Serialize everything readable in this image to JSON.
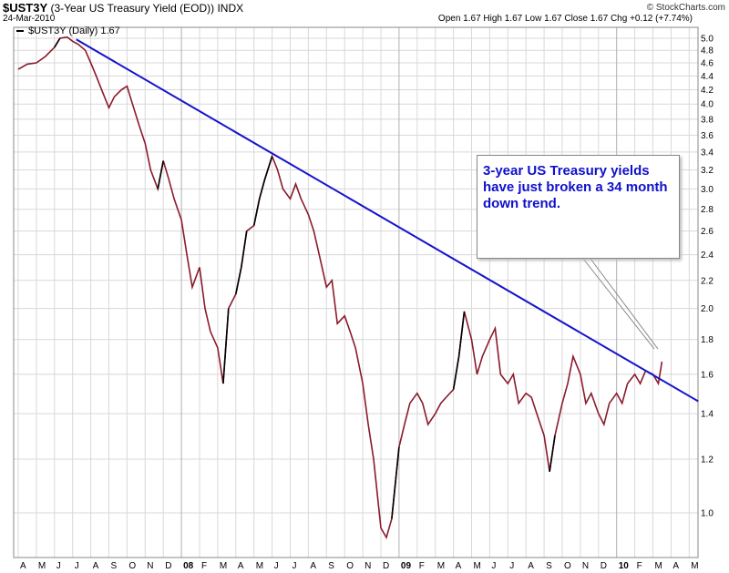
{
  "header": {
    "symbol": "$UST3Y",
    "description": "(3-Year US Treasury Yield (EOD))",
    "exchange": "INDX",
    "date": "24-Mar-2010",
    "ohlc": "Open 1.67   High 1.67   Low 1.67   Close 1.67   Chg +0.12 (+7.74%)",
    "watermark": "© StockCharts.com"
  },
  "legend": {
    "label": "$UST3Y (Daily) 1.67"
  },
  "annotation": {
    "lines": [
      "3-year US Treasury yields",
      "have just  broken a 34 month",
      "down trend."
    ]
  },
  "colors": {
    "price": "#8b1a2b",
    "price_up": "#000000",
    "trendline": "#1414cc",
    "grid": "#d8d8d8",
    "callout_text": "#1010cc"
  },
  "chart_data": {
    "type": "line",
    "title": "$UST3Y (3-Year US Treasury Yield (EOD))",
    "y_scale": "log",
    "ylim": [
      0.9,
      5.2
    ],
    "y_ticks": [
      1.0,
      1.2,
      1.4,
      1.6,
      1.8,
      2.0,
      2.2,
      2.4,
      2.6,
      2.8,
      3.0,
      3.2,
      3.4,
      3.6,
      3.8,
      4.0,
      4.2,
      4.4,
      4.6,
      4.8,
      5.0
    ],
    "x_tick_labels": [
      "A",
      "M",
      "J",
      "J",
      "A",
      "S",
      "O",
      "N",
      "D",
      "08",
      "F",
      "M",
      "A",
      "M",
      "J",
      "J",
      "A",
      "S",
      "O",
      "N",
      "D",
      "09",
      "F",
      "M",
      "A",
      "M",
      "J",
      "J",
      "A",
      "S",
      "O",
      "N",
      "D",
      "10",
      "F",
      "M",
      "A",
      "M"
    ],
    "bold_x_labels": [
      "08",
      "09",
      "10"
    ],
    "x_range_months": [
      0,
      37.5
    ],
    "grid": true,
    "series": [
      {
        "name": "$UST3Y (Daily)",
        "x": [
          0,
          0.5,
          1.0,
          1.5,
          2.0,
          2.3,
          2.7,
          3.0,
          3.3,
          3.7,
          4.0,
          4.3,
          4.6,
          5.0,
          5.3,
          5.7,
          6.0,
          6.3,
          6.7,
          7.0,
          7.3,
          7.7,
          8.0,
          8.3,
          8.6,
          9.0,
          9.3,
          9.6,
          10.0,
          10.3,
          10.6,
          11.0,
          11.3,
          11.6,
          12.0,
          12.3,
          12.6,
          13.0,
          13.3,
          13.6,
          14.0,
          14.3,
          14.6,
          15.0,
          15.3,
          15.6,
          16.0,
          16.3,
          16.6,
          17.0,
          17.3,
          17.6,
          18.0,
          18.3,
          18.6,
          19.0,
          19.3,
          19.6,
          20.0,
          20.3,
          20.6,
          21.0,
          21.3,
          21.6,
          22.0,
          22.3,
          22.6,
          23.0,
          23.3,
          23.6,
          24.0,
          24.3,
          24.6,
          25.0,
          25.3,
          25.6,
          26.0,
          26.3,
          26.6,
          27.0,
          27.3,
          27.6,
          28.0,
          28.3,
          28.6,
          29.0,
          29.3,
          29.6,
          30.0,
          30.3,
          30.6,
          31.0,
          31.3,
          31.6,
          32.0,
          32.3,
          32.6,
          33.0,
          33.3,
          33.6,
          34.0,
          34.3,
          34.6,
          35.0,
          35.3,
          35.5
        ],
        "values": [
          4.5,
          4.58,
          4.6,
          4.7,
          4.85,
          5.0,
          5.02,
          4.95,
          4.9,
          4.8,
          4.6,
          4.4,
          4.2,
          3.95,
          4.1,
          4.2,
          4.25,
          4.0,
          3.7,
          3.5,
          3.2,
          3.0,
          3.3,
          3.1,
          2.9,
          2.7,
          2.4,
          2.15,
          2.3,
          2.0,
          1.85,
          1.75,
          1.55,
          2.0,
          2.1,
          2.3,
          2.6,
          2.65,
          2.9,
          3.1,
          3.35,
          3.2,
          3.0,
          2.9,
          3.05,
          2.9,
          2.75,
          2.6,
          2.4,
          2.15,
          2.2,
          1.9,
          1.95,
          1.85,
          1.75,
          1.55,
          1.35,
          1.2,
          0.95,
          0.92,
          0.98,
          1.25,
          1.35,
          1.45,
          1.5,
          1.45,
          1.35,
          1.4,
          1.45,
          1.48,
          1.52,
          1.7,
          1.98,
          1.8,
          1.6,
          1.7,
          1.8,
          1.87,
          1.6,
          1.55,
          1.6,
          1.45,
          1.5,
          1.48,
          1.4,
          1.3,
          1.15,
          1.3,
          1.45,
          1.55,
          1.7,
          1.6,
          1.45,
          1.5,
          1.4,
          1.35,
          1.45,
          1.5,
          1.45,
          1.55,
          1.6,
          1.55,
          1.62,
          1.6,
          1.55,
          1.67
        ]
      },
      {
        "name": "trendline",
        "x": [
          3.2,
          37.5
        ],
        "values": [
          4.98,
          1.46
        ]
      }
    ]
  }
}
